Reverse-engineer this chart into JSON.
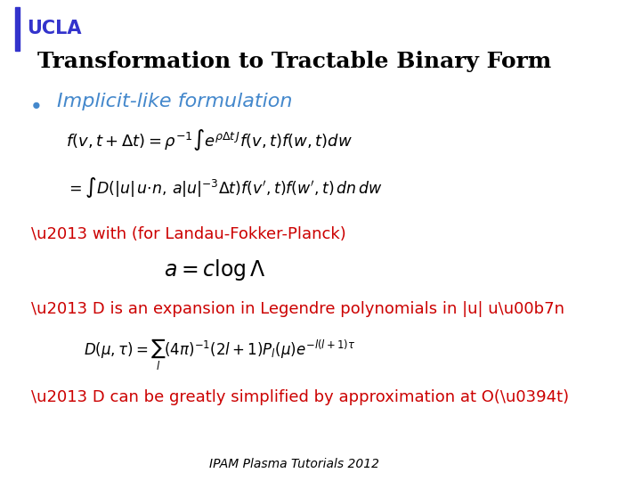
{
  "background_color": "#ffffff",
  "ucla_text": "UCLA",
  "ucla_color": "#3333cc",
  "ucla_left_bar_color": "#3333cc",
  "title": "Transformation to Tractable Binary Form",
  "title_color": "#000000",
  "title_fontsize": 18,
  "bullet_color": "#4488cc",
  "bullet_text": "Implicit-like formulation",
  "bullet_fontsize": 16,
  "eq1": "$f(v,t+\\Delta t) = \\rho^{-1}\\int e^{\\rho \\Delta t\\, J} f(v,t)f(w,t)dw$",
  "eq2": "$= \\int D(|u|\\,u{\\cdot}n,\\,a|u|^{-3}\\Delta t)f(v',t)f(w',t)\\,dn\\,dw$",
  "dash1_text": "\\u2013 with (for Landau-Fokker-Planck)",
  "dash1_color": "#cc0000",
  "eq3": "$a = c\\log\\Lambda$",
  "dash2_text": "\\u2013 D is an expansion in Legendre polynomials in |u| u\\u00b7n",
  "dash2_color": "#cc0000",
  "eq4": "$D(\\mu,\\tau) = \\sum_{l}(4\\pi)^{-1}(2l+1)P_l(\\mu)e^{-l(l+1)\\tau}$",
  "dash3_text": "\\u2013 D can be greatly simplified by approximation at O(\\u0394t)",
  "dash3_color": "#cc0000",
  "footer": "IPAM Plasma Tutorials 2012",
  "footer_color": "#000000",
  "footer_fontsize": 10
}
